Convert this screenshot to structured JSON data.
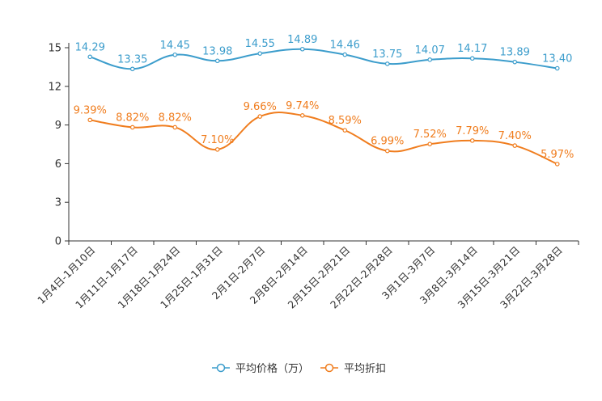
{
  "chart_data": {
    "type": "line",
    "categories": [
      "1月4日-1月10日",
      "1月11日-1月17日",
      "1月18日-1月24日",
      "1月25日-1月31日",
      "2月1日-2月7日",
      "2月8日-2月14日",
      "2月15日-2月21日",
      "2月22日-2月28日",
      "3月1日-3月7日",
      "3月8日-3月14日",
      "3月15日-3月21日",
      "3月22日-3月28日"
    ],
    "series": [
      {
        "name": "平均价格（万）",
        "color": "#3c9dcc",
        "values": [
          14.29,
          13.35,
          14.45,
          13.98,
          14.55,
          14.89,
          14.46,
          13.75,
          14.07,
          14.17,
          13.89,
          13.4
        ],
        "labels": [
          "14.29",
          "13.35",
          "14.45",
          "13.98",
          "14.55",
          "14.89",
          "14.46",
          "13.75",
          "14.07",
          "14.17",
          "13.89",
          "13.40"
        ]
      },
      {
        "name": "平均折扣",
        "color": "#f07d1e",
        "values": [
          9.39,
          8.82,
          8.82,
          7.1,
          9.66,
          9.74,
          8.59,
          6.99,
          7.52,
          7.79,
          7.4,
          5.97
        ],
        "labels": [
          "9.39%",
          "8.82%",
          "8.82%",
          "7.10%",
          "9.66%",
          "9.74%",
          "8.59%",
          "6.99%",
          "7.52%",
          "7.79%",
          "7.40%",
          "5.97%"
        ]
      }
    ],
    "ylim": [
      0,
      15
    ],
    "yticks": [
      "0",
      "3",
      "6",
      "9",
      "12",
      "15"
    ],
    "title": "",
    "xlabel": "",
    "ylabel": "",
    "grid": false,
    "legend": "bottom-center"
  }
}
